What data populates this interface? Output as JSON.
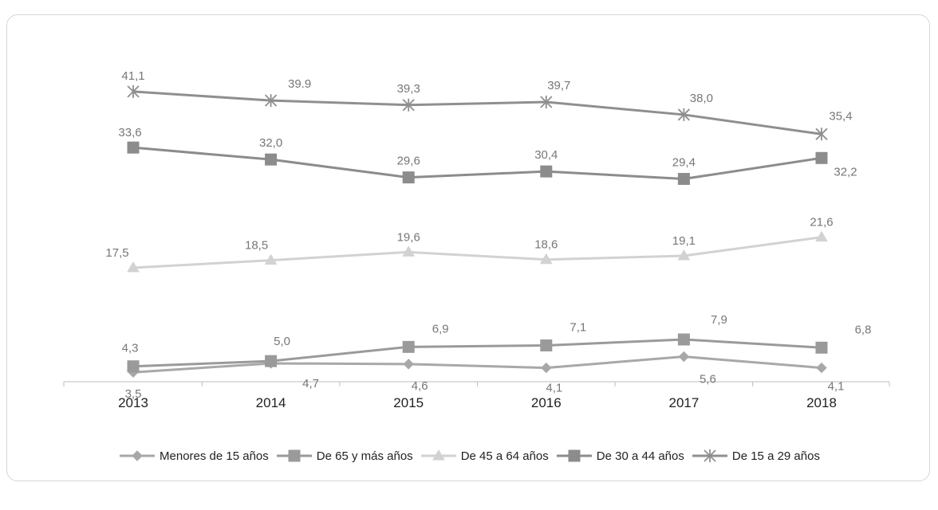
{
  "chart_data": {
    "type": "line",
    "title": "",
    "xlabel": "",
    "ylabel": "",
    "categories": [
      "2013",
      "2014",
      "2015",
      "2016",
      "2017",
      "2018"
    ],
    "ylim": [
      0,
      45
    ],
    "grid": false,
    "legend_position": "bottom",
    "series": [
      {
        "name": "Menores de 15 años",
        "marker": "diamond",
        "color": "#a8a8a8",
        "values": [
          3.5,
          4.7,
          4.6,
          4.1,
          5.6,
          4.1
        ],
        "labels": [
          "3,5",
          "4,7",
          "4,6",
          "4,1",
          "5,6",
          "4,1"
        ]
      },
      {
        "name": "De 65 y más años",
        "marker": "square",
        "color": "#9a9a9a",
        "values": [
          4.3,
          5.0,
          6.9,
          7.1,
          7.9,
          6.8
        ],
        "labels": [
          "4,3",
          "5,0",
          "6,9",
          "7,1",
          "7,9",
          "6,8"
        ]
      },
      {
        "name": "De 45 a 64 años",
        "marker": "triangle",
        "color": "#d2d2d2",
        "values": [
          17.5,
          18.5,
          19.6,
          18.6,
          19.1,
          21.6
        ],
        "labels": [
          "17,5",
          "18,5",
          "19,6",
          "18,6",
          "19,1",
          "21,6"
        ]
      },
      {
        "name": "De 30 a 44 años",
        "marker": "square",
        "color": "#8c8c8c",
        "values": [
          33.6,
          32.0,
          29.6,
          30.4,
          29.4,
          32.2
        ],
        "labels": [
          "33,6",
          "32,0",
          "29,6",
          "30,4",
          "29,4",
          "32,2"
        ]
      },
      {
        "name": "De 15 a 29 años",
        "marker": "star",
        "color": "#8f8f8f",
        "values": [
          41.1,
          39.9,
          39.3,
          39.7,
          38.0,
          35.4
        ],
        "labels": [
          "41,1",
          "39.9",
          "39,3",
          "39,7",
          "38,0",
          "35,4"
        ]
      }
    ]
  }
}
